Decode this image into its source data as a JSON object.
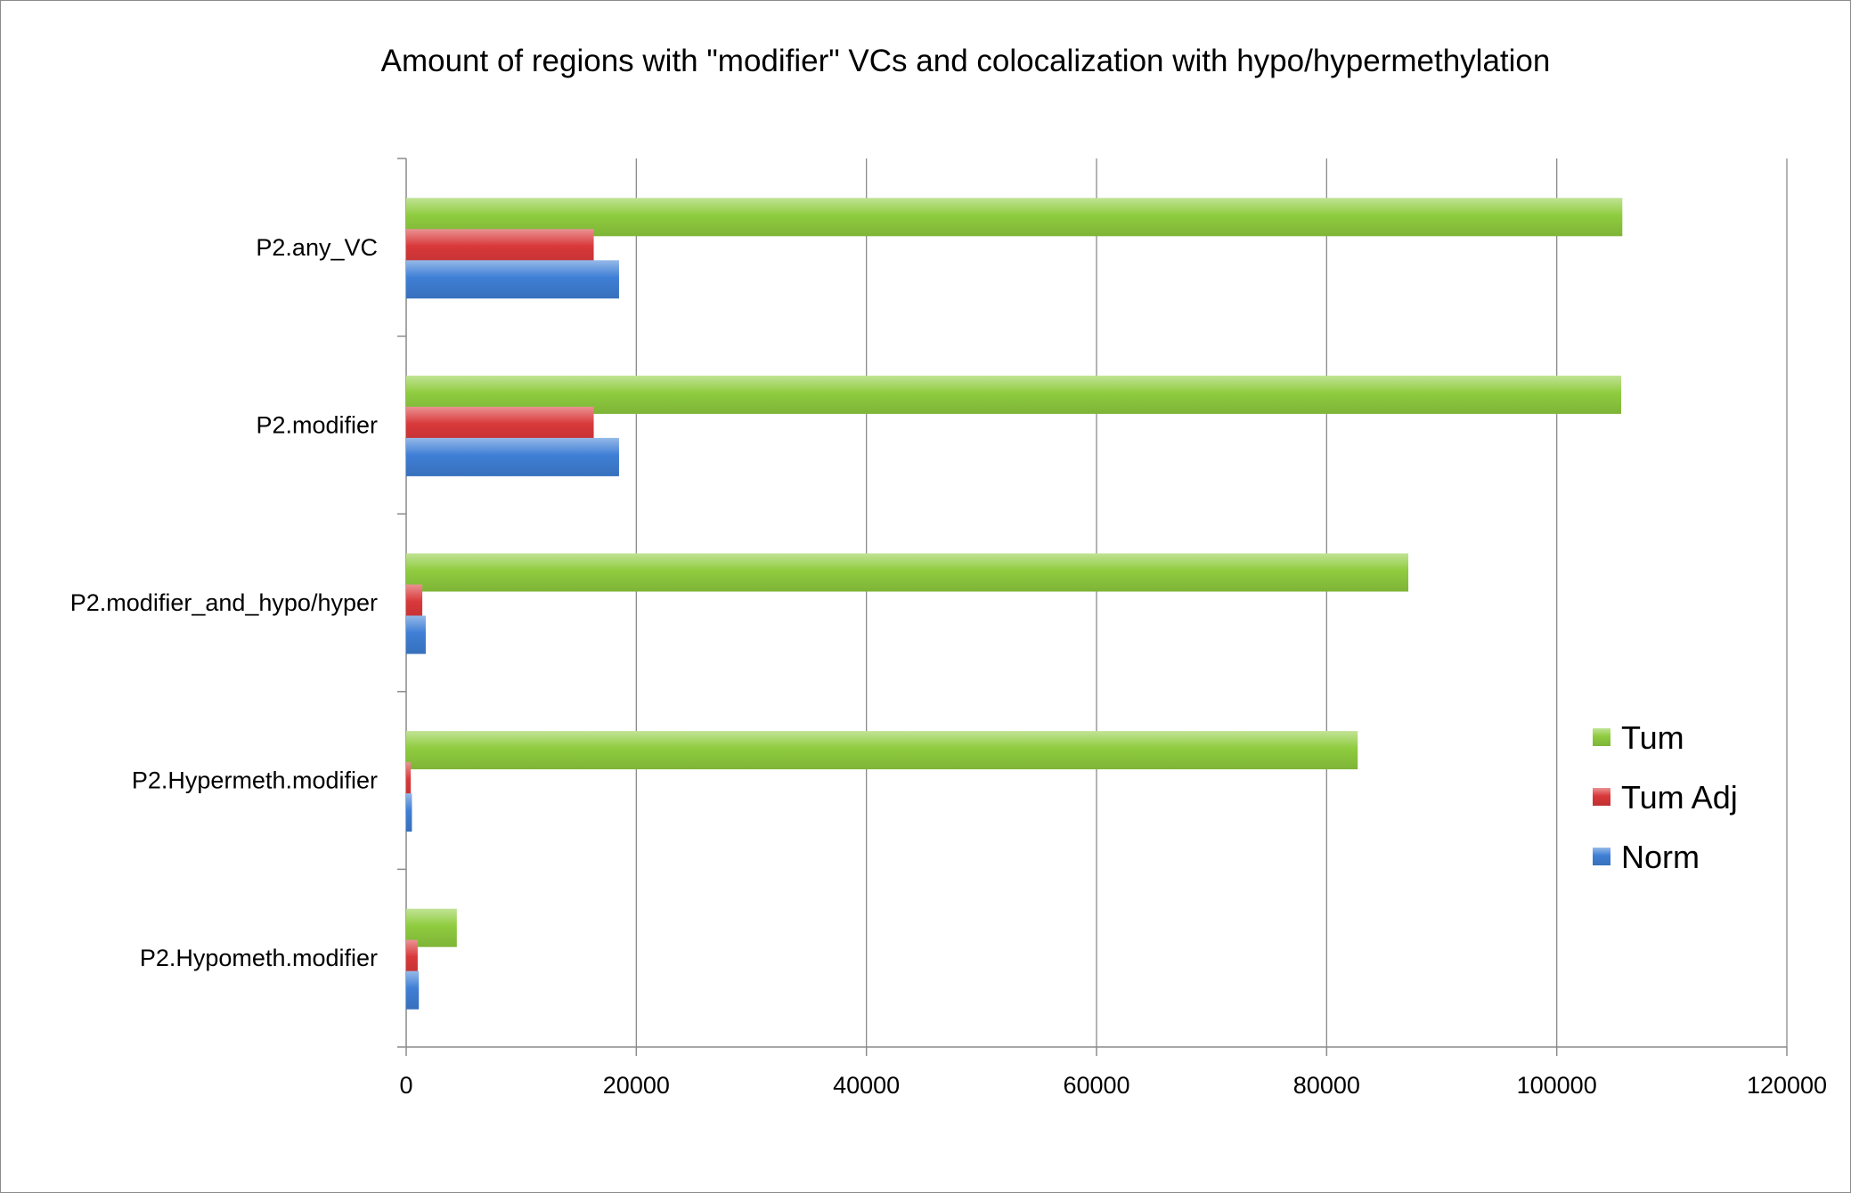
{
  "chart_data": {
    "type": "bar",
    "orientation": "horizontal",
    "title": "Amount of regions with \"modifier\" VCs and colocalization with hypo/hypermethylation",
    "xlabel": "",
    "ylabel": "",
    "xlim": [
      0,
      120000
    ],
    "xticks": [
      0,
      20000,
      40000,
      60000,
      80000,
      100000,
      120000
    ],
    "xtick_labels": [
      "0",
      "20000",
      "40000",
      "60000",
      "80000",
      "100000",
      "120000"
    ],
    "grid": true,
    "legend_position": "right",
    "categories": [
      "P2.any_VC",
      "P2.modifier",
      "P2.modifier_and_hypo/hyper",
      "P2.Hypermeth.modifier",
      "P2.Hypometh.modifier"
    ],
    "series": [
      {
        "name": "Tum",
        "color": "#8fcc3f",
        "values": [
          105700,
          105600,
          87100,
          82700,
          4400
        ]
      },
      {
        "name": "Tum Adj",
        "color": "#d9383a",
        "values": [
          16300,
          16300,
          1400,
          400,
          1000
        ]
      },
      {
        "name": "Norm",
        "color": "#3f7fd6",
        "values": [
          18500,
          18500,
          1700,
          500,
          1100
        ]
      }
    ]
  }
}
